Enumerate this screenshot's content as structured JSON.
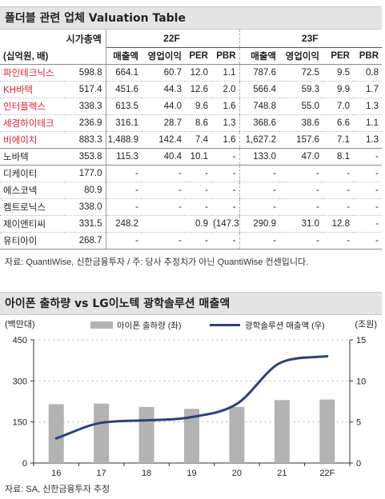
{
  "table": {
    "title": "폴더블 관련 업체 Valuation Table",
    "unit_label": "(십억원, 배)",
    "mktcap_label": "시가총액",
    "groups": [
      "22F",
      "23F"
    ],
    "columns": [
      "매출액",
      "영업이익",
      "PER",
      "PBR",
      "매출액",
      "영업이익",
      "PER",
      "PBR"
    ],
    "rows": [
      {
        "name": "파인테크닉스",
        "highlight": true,
        "mktcap": "598.8",
        "values": [
          "664.1",
          "60.7",
          "12.0",
          "1.1",
          "787.6",
          "72.5",
          "9.5",
          "0.8"
        ]
      },
      {
        "name": "KH바텍",
        "highlight": true,
        "mktcap": "517.4",
        "values": [
          "451.6",
          "44.3",
          "12.6",
          "2.0",
          "566.4",
          "59.3",
          "9.9",
          "1.7"
        ]
      },
      {
        "name": "인터플렉스",
        "highlight": true,
        "mktcap": "338.3",
        "values": [
          "613.5",
          "44.0",
          "9.6",
          "1.6",
          "748.8",
          "55.0",
          "7.0",
          "1.3"
        ]
      },
      {
        "name": "세경하이테크",
        "highlight": true,
        "mktcap": "236.9",
        "values": [
          "316.1",
          "28.7",
          "8.6",
          "1.3",
          "368.6",
          "38.6",
          "6.6",
          "1.1"
        ]
      },
      {
        "name": "비에이치",
        "highlight": true,
        "mktcap": "883.3",
        "values": [
          "1,488.9",
          "142.4",
          "7.4",
          "1.6",
          "1,627.2",
          "157.6",
          "7.1",
          "1.3"
        ]
      },
      {
        "name": "노바텍",
        "highlight": false,
        "mktcap": "353.8",
        "values": [
          "115.3",
          "40.4",
          "10.1",
          "-",
          "133.0",
          "47.0",
          "8.1",
          "-"
        ]
      },
      {
        "name": "디케이티",
        "highlight": false,
        "mktcap": "177.0",
        "values": [
          "-",
          "-",
          "-",
          "-",
          "-",
          "-",
          "-",
          "-"
        ]
      },
      {
        "name": "에스코넥",
        "highlight": false,
        "mktcap": "80.9",
        "values": [
          "-",
          "-",
          "-",
          "-",
          "-",
          "-",
          "-",
          "-"
        ]
      },
      {
        "name": "켐트로닉스",
        "highlight": false,
        "mktcap": "338.0",
        "values": [
          "-",
          "-",
          "-",
          "-",
          "-",
          "-",
          "-",
          "-"
        ]
      },
      {
        "name": "제이앤티씨",
        "highlight": false,
        "mktcap": "331.5",
        "values": [
          "248.2",
          "",
          "0.9",
          "(147.3)",
          "290.9",
          "31.0",
          "12.8",
          "-"
        ]
      },
      {
        "name": "유티아이",
        "highlight": false,
        "mktcap": "268.7",
        "values": [
          "-",
          "-",
          "-",
          "-",
          "-",
          "-",
          "-",
          "-"
        ]
      }
    ],
    "source": "자료: QuantiWise, 신한금융투자  /  주: 당사 추정치가 아닌 QuantiWise 컨센입니다."
  },
  "chart_section": {
    "title": "아이폰 출하량 vs LG이노텍 광학솔루션 매출액",
    "source": "자료: SA, 신한금융투자 추정"
  },
  "chart_data": {
    "type": "bar",
    "categories": [
      "16",
      "17",
      "18",
      "19",
      "20",
      "21",
      "22F"
    ],
    "series": [
      {
        "name": "아이폰 출하량 (좌)",
        "kind": "bar",
        "axis": "left",
        "color": "#b3b3b3",
        "values": [
          215,
          217,
          205,
          198,
          205,
          230,
          232
        ]
      },
      {
        "name": "광학솔루션 매출액 (우)",
        "kind": "line",
        "axis": "right",
        "color": "#2e3f7c",
        "values": [
          3.0,
          4.9,
          5.2,
          5.6,
          7.2,
          12.3,
          13.0
        ]
      }
    ],
    "ylabel_left": "(백만대)",
    "ylabel_right": "(조원)",
    "ylim_left": [
      0,
      450
    ],
    "yticks_left": [
      0,
      150,
      300,
      450
    ],
    "ylim_right": [
      0,
      15
    ],
    "yticks_right": [
      0,
      5,
      10,
      15
    ],
    "legend": "top-right",
    "grid": "horizontal-dashed"
  }
}
